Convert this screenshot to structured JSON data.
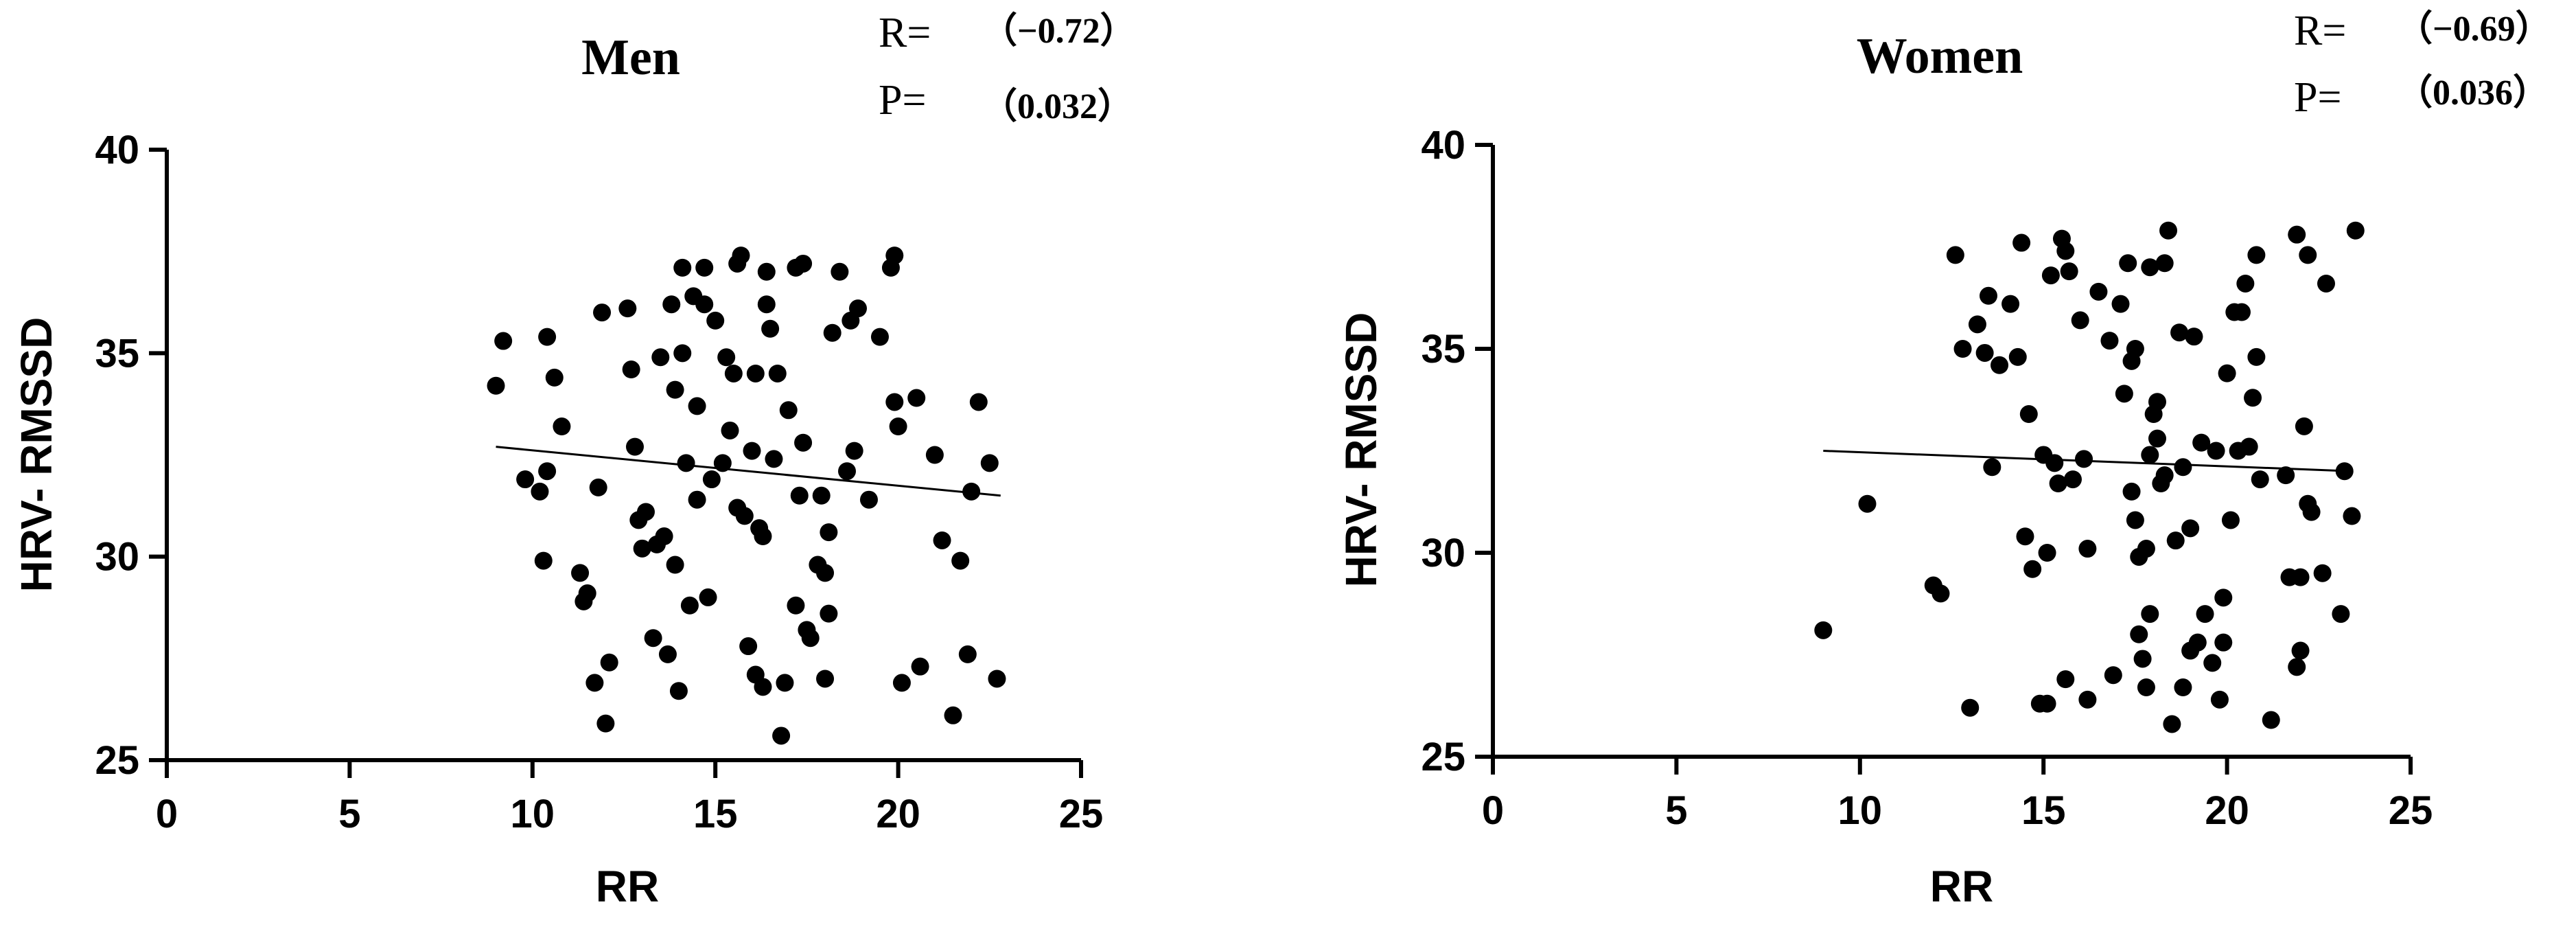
{
  "chart_data": [
    {
      "type": "scatter",
      "title": "Men",
      "xlabel": "RR",
      "ylabel": "HRV- RMSSD",
      "xlim": [
        0,
        25
      ],
      "ylim": [
        25,
        40
      ],
      "xticks": [
        "0",
        "5",
        "10",
        "15",
        "20",
        "25"
      ],
      "yticks": [
        "25",
        "30",
        "35",
        "40"
      ],
      "grid": false,
      "stats": {
        "r_label": "R=",
        "r_value": "（−0.72）",
        "p_label": "P=",
        "p_value": "（0.032）"
      },
      "trendline": [
        [
          9,
          32.7
        ],
        [
          22.8,
          31.5
        ]
      ],
      "points": [
        [
          9.0,
          34.2
        ],
        [
          9.2,
          35.3
        ],
        [
          9.8,
          31.9
        ],
        [
          10.2,
          31.6
        ],
        [
          10.3,
          29.9
        ],
        [
          10.4,
          35.4
        ],
        [
          10.6,
          34.4
        ],
        [
          10.8,
          33.2
        ],
        [
          10.4,
          32.1
        ],
        [
          11.3,
          29.6
        ],
        [
          11.4,
          28.9
        ],
        [
          11.5,
          29.1
        ],
        [
          11.7,
          26.9
        ],
        [
          11.8,
          31.7
        ],
        [
          11.9,
          36.0
        ],
        [
          12.0,
          25.9
        ],
        [
          12.1,
          27.4
        ],
        [
          12.6,
          36.1
        ],
        [
          12.7,
          34.6
        ],
        [
          12.8,
          32.7
        ],
        [
          12.9,
          30.9
        ],
        [
          13.0,
          30.2
        ],
        [
          13.1,
          31.1
        ],
        [
          13.3,
          28.0
        ],
        [
          13.4,
          30.3
        ],
        [
          13.5,
          34.9
        ],
        [
          13.6,
          30.5
        ],
        [
          13.7,
          27.6
        ],
        [
          13.8,
          36.2
        ],
        [
          13.9,
          34.1
        ],
        [
          14.0,
          26.7
        ],
        [
          14.1,
          35.0
        ],
        [
          14.2,
          32.3
        ],
        [
          13.9,
          29.8
        ],
        [
          14.1,
          37.1
        ],
        [
          14.3,
          28.8
        ],
        [
          14.4,
          36.4
        ],
        [
          14.5,
          33.7
        ],
        [
          14.5,
          31.4
        ],
        [
          14.7,
          37.1
        ],
        [
          14.7,
          36.2
        ],
        [
          14.8,
          29.0
        ],
        [
          14.9,
          31.9
        ],
        [
          15.0,
          35.8
        ],
        [
          15.2,
          32.3
        ],
        [
          15.3,
          34.9
        ],
        [
          15.4,
          33.1
        ],
        [
          15.5,
          34.5
        ],
        [
          15.6,
          37.2
        ],
        [
          15.6,
          31.2
        ],
        [
          15.7,
          37.4
        ],
        [
          15.8,
          31.0
        ],
        [
          15.9,
          27.8
        ],
        [
          16.0,
          32.6
        ],
        [
          16.1,
          27.1
        ],
        [
          16.1,
          34.5
        ],
        [
          16.2,
          30.7
        ],
        [
          16.3,
          30.5
        ],
        [
          16.3,
          26.8
        ],
        [
          16.4,
          37.0
        ],
        [
          16.4,
          36.2
        ],
        [
          16.5,
          35.6
        ],
        [
          16.6,
          32.4
        ],
        [
          16.7,
          34.5
        ],
        [
          16.8,
          25.6
        ],
        [
          16.9,
          26.9
        ],
        [
          17.0,
          33.6
        ],
        [
          17.2,
          37.1
        ],
        [
          17.2,
          28.8
        ],
        [
          17.3,
          31.5
        ],
        [
          17.4,
          37.2
        ],
        [
          17.4,
          32.8
        ],
        [
          17.5,
          28.2
        ],
        [
          17.6,
          28.0
        ],
        [
          17.8,
          29.8
        ],
        [
          17.9,
          31.5
        ],
        [
          18.0,
          29.6
        ],
        [
          18.0,
          27.0
        ],
        [
          18.1,
          30.6
        ],
        [
          18.1,
          28.6
        ],
        [
          18.2,
          35.5
        ],
        [
          18.4,
          37.0
        ],
        [
          18.6,
          32.1
        ],
        [
          18.7,
          35.8
        ],
        [
          18.8,
          32.6
        ],
        [
          18.9,
          36.1
        ],
        [
          19.2,
          31.4
        ],
        [
          19.5,
          35.4
        ],
        [
          19.8,
          37.1
        ],
        [
          19.9,
          33.8
        ],
        [
          19.9,
          37.4
        ],
        [
          20.0,
          33.2
        ],
        [
          20.1,
          26.9
        ],
        [
          20.5,
          33.9
        ],
        [
          20.6,
          27.3
        ],
        [
          21.0,
          32.5
        ],
        [
          21.2,
          30.4
        ],
        [
          21.5,
          26.1
        ],
        [
          21.7,
          29.9
        ],
        [
          21.9,
          27.6
        ],
        [
          22.0,
          31.6
        ],
        [
          22.2,
          33.8
        ],
        [
          22.5,
          32.3
        ],
        [
          22.7,
          27.0
        ]
      ]
    },
    {
      "type": "scatter",
      "title": "Women",
      "xlabel": "RR",
      "ylabel": "HRV- RMSSD",
      "xlim": [
        0,
        25
      ],
      "ylim": [
        25,
        40
      ],
      "xticks": [
        "0",
        "5",
        "10",
        "15",
        "20",
        "25"
      ],
      "yticks": [
        "25",
        "30",
        "35",
        "40"
      ],
      "grid": false,
      "stats": {
        "r_label": "R=",
        "r_value": "（−0.69）",
        "p_label": "P=",
        "p_value": "（0.036）"
      },
      "trendline": [
        [
          9,
          32.5
        ],
        [
          23.4,
          32.0
        ]
      ],
      "points": [
        [
          9.0,
          28.1
        ],
        [
          10.2,
          31.2
        ],
        [
          12.0,
          29.2
        ],
        [
          12.2,
          29.0
        ],
        [
          12.6,
          37.3
        ],
        [
          12.8,
          35.0
        ],
        [
          13.0,
          26.2
        ],
        [
          13.2,
          35.6
        ],
        [
          13.4,
          34.9
        ],
        [
          13.5,
          36.3
        ],
        [
          13.6,
          32.1
        ],
        [
          13.8,
          34.6
        ],
        [
          14.1,
          36.1
        ],
        [
          14.3,
          34.8
        ],
        [
          14.4,
          37.6
        ],
        [
          14.5,
          30.4
        ],
        [
          14.6,
          33.4
        ],
        [
          14.7,
          29.6
        ],
        [
          14.9,
          26.3
        ],
        [
          15.0,
          32.4
        ],
        [
          15.1,
          26.3
        ],
        [
          15.1,
          30.0
        ],
        [
          15.2,
          36.8
        ],
        [
          15.3,
          32.2
        ],
        [
          15.4,
          31.7
        ],
        [
          15.5,
          37.7
        ],
        [
          15.6,
          37.4
        ],
        [
          15.7,
          36.9
        ],
        [
          15.6,
          26.9
        ],
        [
          15.8,
          31.8
        ],
        [
          16.0,
          35.7
        ],
        [
          16.1,
          32.3
        ],
        [
          16.2,
          30.1
        ],
        [
          16.2,
          26.4
        ],
        [
          16.5,
          36.4
        ],
        [
          16.8,
          35.2
        ],
        [
          16.9,
          27.0
        ],
        [
          17.1,
          36.1
        ],
        [
          17.2,
          33.9
        ],
        [
          17.3,
          37.1
        ],
        [
          17.4,
          34.7
        ],
        [
          17.4,
          31.5
        ],
        [
          17.5,
          35.0
        ],
        [
          17.5,
          30.8
        ],
        [
          17.6,
          29.9
        ],
        [
          17.6,
          28.0
        ],
        [
          17.7,
          27.4
        ],
        [
          17.8,
          30.1
        ],
        [
          17.8,
          26.7
        ],
        [
          17.9,
          37.0
        ],
        [
          17.9,
          28.5
        ],
        [
          17.9,
          32.4
        ],
        [
          18.0,
          33.4
        ],
        [
          18.1,
          33.7
        ],
        [
          18.1,
          32.8
        ],
        [
          18.2,
          31.7
        ],
        [
          18.3,
          37.1
        ],
        [
          18.3,
          31.9
        ],
        [
          18.4,
          37.9
        ],
        [
          18.5,
          25.8
        ],
        [
          18.6,
          30.3
        ],
        [
          18.7,
          35.4
        ],
        [
          18.8,
          26.7
        ],
        [
          18.8,
          32.1
        ],
        [
          19.0,
          27.6
        ],
        [
          19.0,
          30.6
        ],
        [
          19.1,
          35.3
        ],
        [
          19.2,
          27.8
        ],
        [
          19.3,
          32.7
        ],
        [
          19.4,
          28.5
        ],
        [
          19.6,
          27.3
        ],
        [
          19.7,
          32.5
        ],
        [
          19.8,
          26.4
        ],
        [
          19.9,
          28.9
        ],
        [
          19.9,
          27.8
        ],
        [
          20.0,
          34.4
        ],
        [
          20.1,
          30.8
        ],
        [
          20.2,
          35.9
        ],
        [
          20.3,
          32.5
        ],
        [
          20.4,
          35.9
        ],
        [
          20.5,
          36.6
        ],
        [
          20.6,
          32.6
        ],
        [
          20.7,
          33.8
        ],
        [
          20.8,
          34.8
        ],
        [
          20.8,
          37.3
        ],
        [
          20.9,
          31.8
        ],
        [
          21.2,
          25.9
        ],
        [
          21.6,
          31.9
        ],
        [
          21.7,
          29.4
        ],
        [
          21.9,
          37.8
        ],
        [
          21.9,
          27.2
        ],
        [
          22.0,
          29.4
        ],
        [
          22.0,
          27.6
        ],
        [
          22.1,
          33.1
        ],
        [
          22.2,
          37.3
        ],
        [
          22.2,
          31.2
        ],
        [
          22.3,
          31.0
        ],
        [
          22.6,
          29.5
        ],
        [
          22.7,
          36.6
        ],
        [
          23.1,
          28.5
        ],
        [
          23.2,
          32.0
        ],
        [
          23.4,
          30.9
        ],
        [
          23.5,
          37.9
        ]
      ]
    }
  ]
}
